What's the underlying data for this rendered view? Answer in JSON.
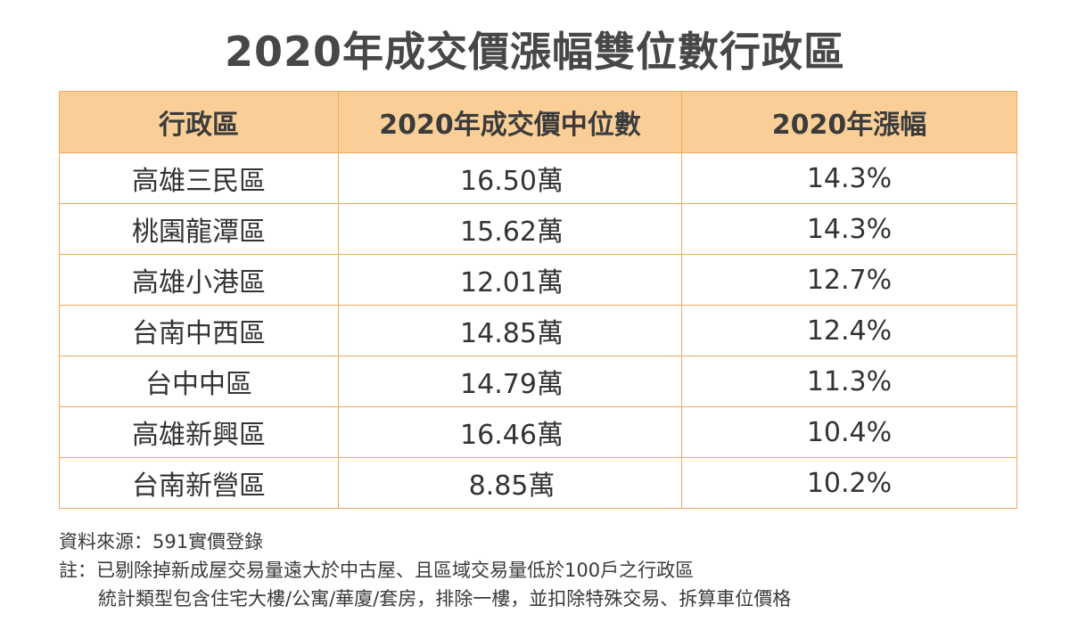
{
  "title": "2020年成交價漲幅雙位數行政區",
  "table": {
    "headers": [
      "行政區",
      "2020年成交價中位數",
      "2020年漲幅"
    ],
    "rows": [
      [
        "高雄三民區",
        "16.50萬",
        "14.3%"
      ],
      [
        "桃園龍潭區",
        "15.62萬",
        "14.3%"
      ],
      [
        "高雄小港區",
        "12.01萬",
        "12.7%"
      ],
      [
        "台南中西區",
        "14.85萬",
        "12.4%"
      ],
      [
        "台中中區",
        "14.79萬",
        "11.3%"
      ],
      [
        "高雄新興區",
        "16.46萬",
        "10.4%"
      ],
      [
        "台南新營區",
        "8.85萬",
        "10.2%"
      ]
    ]
  },
  "notes": {
    "source": "資料來源：591實價登錄",
    "note_line1": "註：已剔除掉新成屋交易量遠大於中古屋、且區域交易量低於100戶之行政區",
    "note_line2": "統計類型包含住宅大樓/公寓/華廈/套房，排除一樓，並扣除特殊交易、拆算車位價格"
  },
  "colors": {
    "header_bg": "#f9cf97",
    "border": "#f2a85c",
    "title_text": "#474747"
  }
}
